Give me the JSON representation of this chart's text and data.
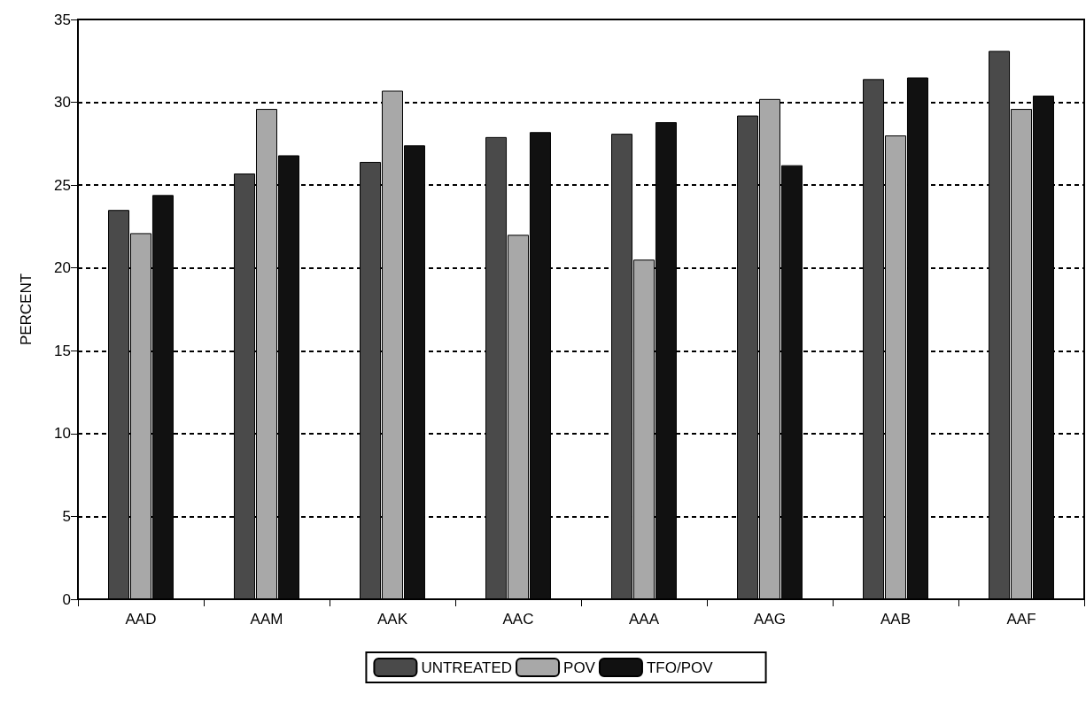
{
  "chart_data": {
    "type": "bar",
    "ylabel": "PERCENT",
    "categories": [
      "AAD",
      "AAM",
      "AAK",
      "AAC",
      "AAA",
      "AAG",
      "AAB",
      "AAF"
    ],
    "series": [
      {
        "name": "UNTREATED",
        "color": "#4a4a4a",
        "values": [
          23.5,
          25.7,
          26.4,
          27.9,
          28.1,
          29.2,
          31.4,
          33.1
        ]
      },
      {
        "name": "POV",
        "color": "#a8a8a8",
        "values": [
          22.1,
          29.6,
          30.7,
          22.0,
          20.5,
          30.2,
          28.0,
          29.6
        ]
      },
      {
        "name": "TFO/POV",
        "color": "#111111",
        "values": [
          24.4,
          26.8,
          27.4,
          28.2,
          28.8,
          26.2,
          31.5,
          30.4
        ]
      }
    ],
    "ylim": [
      0,
      35
    ],
    "yticks": [
      0,
      5,
      10,
      15,
      20,
      25,
      30,
      35
    ],
    "grid": "y",
    "legend": "bottom"
  }
}
